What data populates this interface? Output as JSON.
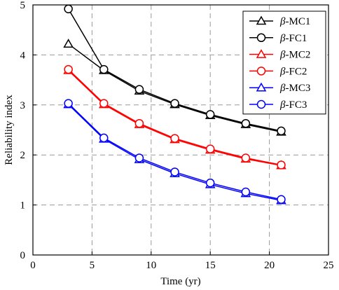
{
  "chart_data": {
    "type": "line",
    "xlabel": "Time (yr)",
    "ylabel": "Reliability index",
    "xlim": [
      0,
      25
    ],
    "ylim": [
      0,
      5
    ],
    "xticks": [
      0,
      5,
      10,
      15,
      20,
      25
    ],
    "yticks": [
      0,
      1,
      2,
      3,
      4,
      5
    ],
    "grid": true,
    "legend_position": "top-right",
    "x": [
      3,
      6,
      9,
      12,
      15,
      18,
      21
    ],
    "series": [
      {
        "name": "MC1",
        "prefix": "β",
        "marker": "triangle",
        "color": "#000000",
        "values": [
          4.22,
          3.69,
          3.28,
          3.01,
          2.79,
          2.61,
          2.46
        ]
      },
      {
        "name": "FC1",
        "prefix": "β",
        "marker": "circle",
        "color": "#000000",
        "values": [
          4.92,
          3.71,
          3.31,
          3.03,
          2.81,
          2.63,
          2.48
        ]
      },
      {
        "name": "MC2",
        "prefix": "β",
        "marker": "triangle",
        "color": "#ff0000",
        "values": [
          3.69,
          3.01,
          2.61,
          2.31,
          2.1,
          1.92,
          1.79
        ]
      },
      {
        "name": "FC2",
        "prefix": "β",
        "marker": "circle",
        "color": "#ff0000",
        "values": [
          3.71,
          3.03,
          2.63,
          2.33,
          2.12,
          1.94,
          1.8
        ]
      },
      {
        "name": "MC3",
        "prefix": "β",
        "marker": "triangle",
        "color": "#0000ff",
        "values": [
          3.01,
          2.32,
          1.91,
          1.63,
          1.41,
          1.23,
          1.09
        ]
      },
      {
        "name": "FC3",
        "prefix": "β",
        "marker": "circle",
        "color": "#0000ff",
        "values": [
          3.03,
          2.34,
          1.94,
          1.66,
          1.44,
          1.26,
          1.11
        ]
      }
    ]
  }
}
